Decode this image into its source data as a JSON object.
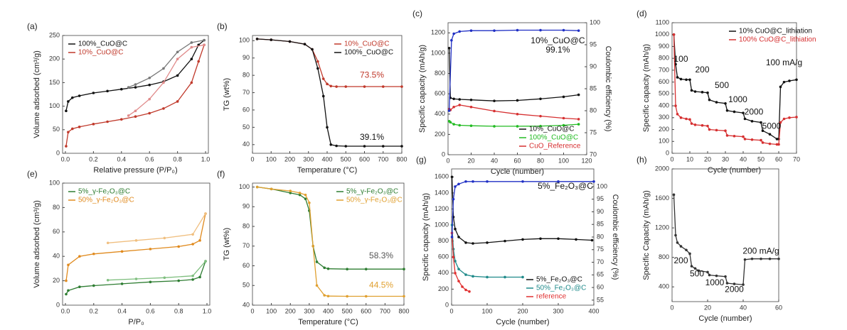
{
  "chart_data": [
    {
      "type": "line",
      "label": "(a)",
      "xlabel": "Relative pressure (P/P₀)",
      "ylabel": "Volume adsorbed (cm³/g)",
      "xlim": [
        -0.02,
        1.02
      ],
      "xticks": [
        {
          "value": 0,
          "label": "0.0"
        },
        0.2,
        0.4,
        0.6,
        0.8,
        {
          "value": 1,
          "label": "1.0"
        }
      ],
      "ylim": [
        0,
        250
      ],
      "yticks": [
        0,
        50,
        100,
        150,
        200,
        250
      ],
      "legend": "upper left",
      "series": [
        {
          "name": "100%_CuO@C",
          "color": "#111111",
          "x": [
            0.005,
            0.02,
            0.05,
            0.1,
            0.2,
            0.3,
            0.4,
            0.5,
            0.6,
            0.7,
            0.8,
            0.9,
            0.95,
            0.99
          ],
          "values": [
            90,
            110,
            118,
            122,
            128,
            132,
            136,
            140,
            145,
            152,
            165,
            200,
            230,
            240
          ]
        },
        {
          "name": "10%_CuO@C",
          "color": "#c0392b",
          "x": [
            0.005,
            0.02,
            0.05,
            0.1,
            0.2,
            0.3,
            0.4,
            0.5,
            0.6,
            0.7,
            0.8,
            0.9,
            0.95,
            0.99
          ],
          "values": [
            15,
            45,
            52,
            56,
            62,
            67,
            72,
            78,
            85,
            95,
            110,
            150,
            195,
            230
          ]
        },
        {
          "color": "#777777",
          "x": [
            0.99,
            0.9,
            0.8,
            0.7,
            0.6,
            0.5,
            0.45
          ],
          "values": [
            240,
            235,
            215,
            180,
            160,
            146,
            140
          ]
        },
        {
          "color": "#e08a8a",
          "x": [
            0.99,
            0.9,
            0.8,
            0.7,
            0.6,
            0.5,
            0.45
          ],
          "values": [
            230,
            225,
            200,
            150,
            115,
            90,
            80
          ]
        }
      ]
    },
    {
      "type": "line",
      "label": "(b)",
      "xlabel": "Temperature (°C)",
      "ylabel": "TG (wt%)",
      "xlim": [
        0,
        800
      ],
      "xticks": [
        0,
        100,
        200,
        300,
        400,
        500,
        600,
        700,
        800
      ],
      "ylim": [
        35,
        103
      ],
      "yticks": [
        40,
        50,
        60,
        70,
        80,
        90,
        100
      ],
      "legend": "upper right",
      "series": [
        {
          "name": "10%_CuO@C",
          "color": "#c0392b",
          "x": [
            25,
            100,
            200,
            280,
            320,
            350,
            380,
            400,
            420,
            450,
            500,
            600,
            700,
            800
          ],
          "values": [
            101,
            100.5,
            99.5,
            98,
            95,
            88,
            78,
            75,
            73.8,
            73.5,
            73.5,
            73.5,
            73.5,
            73.5
          ]
        },
        {
          "name": "100%_CuO@C",
          "color": "#111111",
          "x": [
            25,
            100,
            200,
            280,
            320,
            350,
            380,
            400,
            420,
            450,
            500,
            600,
            700,
            800
          ],
          "values": [
            101,
            100.5,
            99.5,
            98,
            95,
            84,
            68,
            50,
            40,
            39.3,
            39.1,
            39.1,
            39.1,
            39.1
          ]
        }
      ],
      "annotations": [
        {
          "text": "73.5%",
          "color": "#c0392b"
        },
        {
          "text": "39.1%",
          "color": "#111111"
        }
      ]
    },
    {
      "type": "line",
      "label": "(c)",
      "xlabel": "Cycle (number)",
      "ylabel": "Specific capacity (mAh/g)",
      "y2label": "Coulombic efficiency (%)",
      "xlim": [
        0,
        120
      ],
      "xticks": [
        0,
        20,
        40,
        60,
        80,
        100,
        120
      ],
      "ylim": [
        0,
        1300
      ],
      "yticks": [
        0,
        200,
        400,
        600,
        800,
        1000,
        1200
      ],
      "y2lim": [
        70,
        100
      ],
      "y2ticks": [
        70,
        75,
        80,
        85,
        90,
        95,
        100
      ],
      "legend": "lower right",
      "series": [
        {
          "name": "10%_CuO@C",
          "color": "#111111",
          "x": [
            1,
            2,
            5,
            10,
            20,
            40,
            60,
            80,
            100,
            113
          ],
          "values": [
            1050,
            560,
            550,
            545,
            540,
            530,
            535,
            550,
            570,
            590
          ]
        },
        {
          "name": "100%_CuO@C",
          "color": "#22bb22",
          "x": [
            1,
            2,
            5,
            10,
            20,
            40,
            60,
            80,
            100,
            113
          ],
          "values": [
            330,
            320,
            300,
            290,
            285,
            280,
            280,
            282,
            290,
            300
          ]
        },
        {
          "name": "CuO_Reference",
          "color": "#d63031",
          "x": [
            1,
            2,
            5,
            10,
            20,
            40,
            60,
            80,
            100,
            113
          ],
          "values": [
            450,
            440,
            470,
            490,
            470,
            430,
            400,
            380,
            360,
            350
          ]
        },
        {
          "color": "#1f2fc4",
          "axis": "y2",
          "x": [
            1,
            3,
            5,
            10,
            20,
            40,
            60,
            80,
            100,
            113
          ],
          "values": [
            80,
            96,
            97.5,
            98,
            98.2,
            98.2,
            98.3,
            98.3,
            98.3,
            98.2
          ]
        }
      ],
      "annotations": [
        {
          "text": "10%_CuO@C",
          "color": "#111111"
        },
        {
          "text": "99.1%",
          "color": "#111111"
        }
      ]
    },
    {
      "type": "line",
      "label": "(d)",
      "xlabel": "Cycle (number)",
      "ylabel": "Specific capacity (mAh/g)",
      "xlim": [
        0,
        70
      ],
      "xticks": [
        0,
        10,
        20,
        30,
        40,
        50,
        60,
        70
      ],
      "ylim": [
        0,
        1100
      ],
      "yticks": [
        0,
        100,
        200,
        300,
        400,
        500,
        600,
        700,
        800,
        900,
        1000,
        1100
      ],
      "legend": "upper right",
      "series": [
        {
          "name": "10% CuO@C_lithiation",
          "color": "#111111",
          "x": [
            1,
            2,
            3,
            5,
            8,
            10,
            11,
            13,
            17,
            20,
            21,
            25,
            30,
            31,
            35,
            40,
            41,
            45,
            50,
            51,
            55,
            59,
            60,
            61,
            63,
            66,
            70
          ],
          "values": [
            1000,
            750,
            640,
            625,
            620,
            620,
            530,
            520,
            515,
            510,
            450,
            430,
            420,
            360,
            350,
            340,
            290,
            270,
            260,
            190,
            160,
            120,
            120,
            560,
            600,
            610,
            620
          ]
        },
        {
          "name": "100% CuO@C_lithiation",
          "color": "#d63031",
          "x": [
            1,
            2,
            3,
            5,
            8,
            10,
            11,
            13,
            17,
            20,
            21,
            25,
            30,
            31,
            35,
            40,
            41,
            45,
            50,
            51,
            55,
            59,
            60,
            61,
            63,
            66,
            70
          ],
          "values": [
            1000,
            400,
            330,
            300,
            290,
            285,
            250,
            240,
            235,
            230,
            200,
            195,
            190,
            150,
            145,
            140,
            120,
            115,
            110,
            90,
            80,
            75,
            75,
            260,
            290,
            300,
            305
          ]
        }
      ],
      "annotations": [
        {
          "text": "100",
          "color": "#111111"
        },
        {
          "text": "200",
          "color": "#111111"
        },
        {
          "text": "500",
          "color": "#111111"
        },
        {
          "text": "1000",
          "color": "#111111"
        },
        {
          "text": "2000",
          "color": "#111111"
        },
        {
          "text": "5000",
          "color": "#111111"
        },
        {
          "text": "100 mA/g",
          "color": "#111111"
        }
      ]
    },
    {
      "type": "line",
      "label": "(e)",
      "xlabel": "P/P₀",
      "ylabel": "Volume adsorbed (cm³/g)",
      "xlim": [
        -0.02,
        1.02
      ],
      "xticks": [
        {
          "value": 0,
          "label": "0.0"
        },
        0.2,
        0.4,
        0.6,
        0.8,
        {
          "value": 1,
          "label": "1.0"
        }
      ],
      "ylim": [
        0,
        100
      ],
      "yticks": [
        0,
        20,
        40,
        60,
        80,
        100
      ],
      "legend": "upper left",
      "series": [
        {
          "name": "5%_γ-Fe₂O₃@C",
          "color": "#2e7d32",
          "x": [
            0.005,
            0.02,
            0.1,
            0.2,
            0.4,
            0.6,
            0.8,
            0.9,
            0.95,
            0.99
          ],
          "values": [
            9,
            12,
            15,
            16,
            17.5,
            19,
            20,
            21,
            23,
            36
          ]
        },
        {
          "name": "50%_γ-Fe₂O₃@C",
          "color": "#e08a1e",
          "x": [
            0.005,
            0.02,
            0.1,
            0.2,
            0.4,
            0.6,
            0.8,
            0.9,
            0.95,
            0.99
          ],
          "values": [
            20,
            33,
            40,
            42,
            44,
            46,
            48,
            50,
            53,
            75
          ]
        },
        {
          "color": "#7fbf7f",
          "x": [
            0.99,
            0.9,
            0.7,
            0.5,
            0.3
          ],
          "values": [
            36,
            24,
            22.5,
            21.5,
            20.5
          ]
        },
        {
          "color": "#f0bf80",
          "x": [
            0.99,
            0.9,
            0.7,
            0.5,
            0.3
          ],
          "values": [
            75,
            58,
            55,
            53,
            51
          ]
        }
      ]
    },
    {
      "type": "line",
      "label": "(f)",
      "xlabel": "Temperature (°C)",
      "ylabel": "TG (wt%)",
      "xlim": [
        0,
        800
      ],
      "xticks": [
        0,
        100,
        200,
        300,
        400,
        500,
        600,
        700,
        800
      ],
      "ylim": [
        40,
        102
      ],
      "yticks": [
        40,
        50,
        60,
        70,
        80,
        90,
        100
      ],
      "legend": "upper right",
      "series": [
        {
          "name": "5%_γ-Fe₂O₃@C",
          "color": "#2e7d32",
          "x": [
            25,
            100,
            200,
            250,
            280,
            300,
            320,
            340,
            380,
            400,
            500,
            600,
            800
          ],
          "values": [
            100,
            99,
            97,
            96,
            94,
            88,
            70,
            62,
            59,
            58.5,
            58.3,
            58.3,
            58.3
          ]
        },
        {
          "name": "50%_γ-Fe₂O₃@C",
          "color": "#e0a030",
          "x": [
            25,
            100,
            200,
            250,
            280,
            300,
            320,
            340,
            380,
            400,
            500,
            600,
            800
          ],
          "values": [
            100,
            99,
            98,
            97,
            96,
            92,
            70,
            50,
            45,
            44.6,
            44.5,
            44.5,
            44.5
          ]
        }
      ],
      "annotations": [
        {
          "text": "58.3%",
          "color": "#555555"
        },
        {
          "text": "44.5%",
          "color": "#e0a030"
        }
      ]
    },
    {
      "type": "line",
      "label": "(g)",
      "xlabel": "Cycle (number)",
      "ylabel": "Specific capacity (mAh/g)",
      "y2label": "Coulombic efficiency (%)",
      "xlim": [
        0,
        400
      ],
      "xticks": [
        0,
        100,
        200,
        300,
        400
      ],
      "ylim": [
        0,
        1700
      ],
      "yticks": [
        0,
        200,
        400,
        600,
        800,
        1000,
        1200,
        1400,
        1600
      ],
      "y2lim": [
        53,
        107
      ],
      "y2ticks": [
        55,
        60,
        65,
        70,
        75,
        80,
        85,
        90,
        95,
        100
      ],
      "legend": "lower right",
      "series": [
        {
          "name": "5%_Fe₂O₃@C",
          "color": "#111111",
          "x": [
            1,
            5,
            10,
            20,
            40,
            60,
            100,
            150,
            200,
            250,
            300,
            350,
            395
          ],
          "values": [
            1600,
            1100,
            950,
            850,
            780,
            770,
            780,
            800,
            820,
            830,
            830,
            820,
            810
          ]
        },
        {
          "name": "50%_Fe₂O₃@C",
          "color": "#1f8a8a",
          "x": [
            1,
            5,
            10,
            20,
            40,
            60,
            100,
            150,
            200
          ],
          "values": [
            1000,
            700,
            550,
            450,
            380,
            360,
            350,
            350,
            350
          ]
        },
        {
          "name": "reference",
          "color": "#e03030",
          "x": [
            1,
            5,
            10,
            20,
            30,
            40,
            50
          ],
          "values": [
            900,
            600,
            400,
            300,
            230,
            190,
            170
          ]
        },
        {
          "color": "#1f2fc4",
          "axis": "y2",
          "x": [
            1,
            5,
            10,
            20,
            40,
            60,
            100,
            200,
            300,
            400
          ],
          "values": [
            80,
            95,
            100,
            101,
            102,
            102,
            102,
            102,
            102,
            102
          ]
        }
      ],
      "annotations": [
        {
          "text": "5%_Fe₂O₃@C",
          "color": "#111111"
        }
      ]
    },
    {
      "type": "line",
      "label": "(h)",
      "xlabel": "Cycle (number)",
      "ylabel": "Specific Capacity (mAh/g)",
      "xlim": [
        0,
        60
      ],
      "xticks": [
        0,
        20,
        40,
        60
      ],
      "ylim": [
        200,
        2000
      ],
      "yticks": [
        400,
        800,
        1200,
        1600,
        2000
      ],
      "series": [
        {
          "color": "#333333",
          "x": [
            1,
            2,
            3,
            5,
            8,
            10,
            11,
            13,
            15,
            20,
            21,
            25,
            30,
            31,
            35,
            40,
            41,
            45,
            50,
            55,
            60
          ],
          "values": [
            1650,
            1100,
            1000,
            950,
            900,
            850,
            680,
            650,
            620,
            600,
            560,
            550,
            540,
            450,
            440,
            430,
            770,
            780,
            780,
            780,
            780
          ]
        }
      ],
      "annotations": [
        {
          "text": "200",
          "color": "#111111"
        },
        {
          "text": "500",
          "color": "#111111"
        },
        {
          "text": "1000",
          "color": "#111111"
        },
        {
          "text": "2000",
          "color": "#111111"
        },
        {
          "text": "200 mA/g",
          "color": "#111111"
        }
      ]
    }
  ]
}
